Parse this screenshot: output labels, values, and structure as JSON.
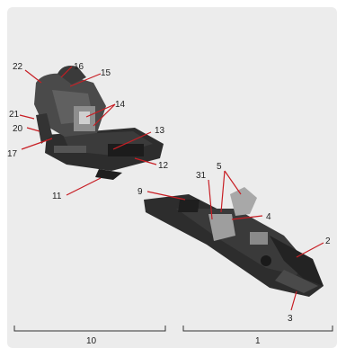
{
  "diagram": {
    "callouts": [
      "22",
      "16",
      "15",
      "14",
      "21",
      "20",
      "17",
      "13",
      "12",
      "11",
      "5",
      "31",
      "4",
      "9",
      "2",
      "3"
    ],
    "bracket_labels": {
      "left": "10",
      "right": "1"
    }
  },
  "colors": {
    "leader": "#c81e24",
    "panel": "#ececec",
    "body_dark": "#2b2b2b",
    "metal": "#9a9a9a"
  }
}
